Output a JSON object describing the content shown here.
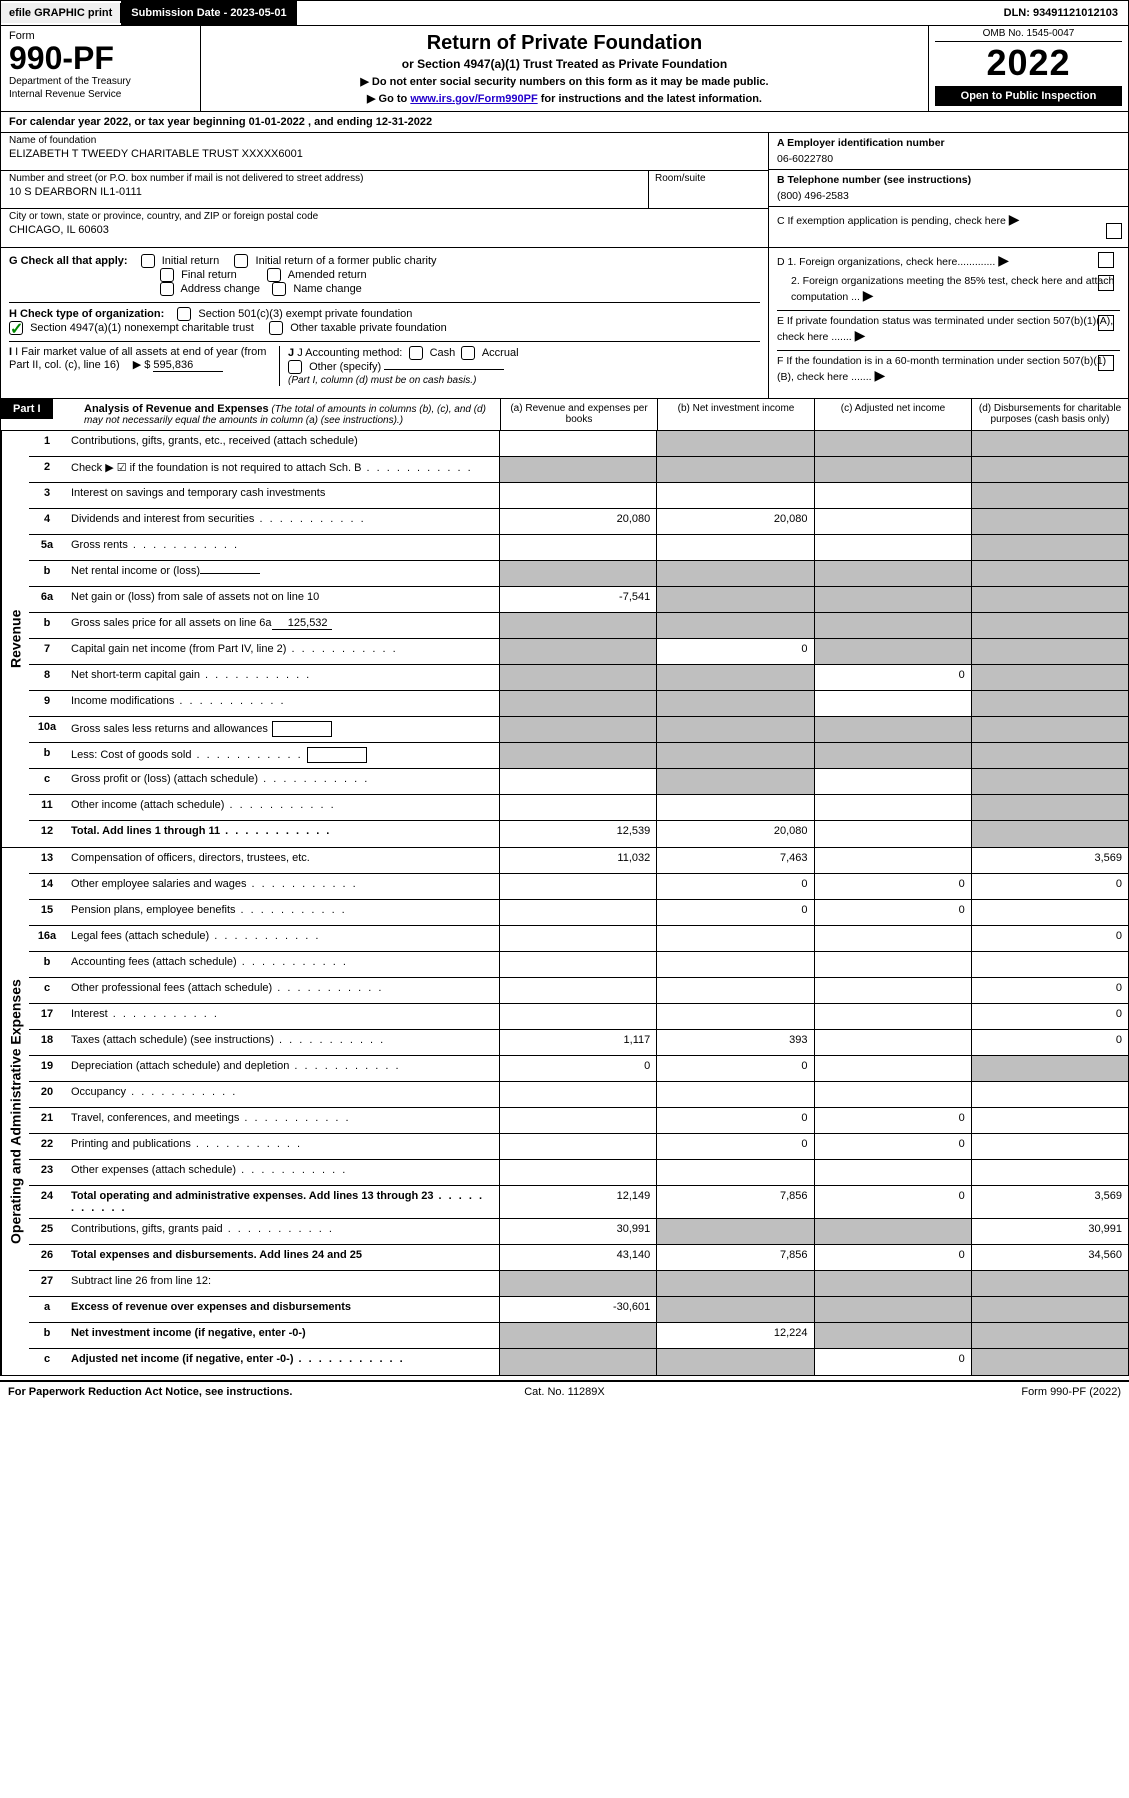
{
  "topbar": {
    "efile_label": "efile GRAPHIC print",
    "submission_date_label": "Submission Date - 2023-05-01",
    "dln": "DLN: 93491121012103"
  },
  "header": {
    "form_label": "Form",
    "form_number": "990-PF",
    "dept1": "Department of the Treasury",
    "dept2": "Internal Revenue Service",
    "title": "Return of Private Foundation",
    "subtitle1": "or Section 4947(a)(1) Trust Treated as Private Foundation",
    "subtitle2": "▶ Do not enter social security numbers on this form as it may be made public.",
    "subtitle3_pre": "▶ Go to ",
    "subtitle3_link": "www.irs.gov/Form990PF",
    "subtitle3_post": " for instructions and the latest information.",
    "omb": "OMB No. 1545-0047",
    "year": "2022",
    "open_public": "Open to Public Inspection"
  },
  "calendar_year": "For calendar year 2022, or tax year beginning 01-01-2022          , and ending 12-31-2022",
  "foundation": {
    "name_label": "Name of foundation",
    "name": "ELIZABETH T TWEEDY CHARITABLE TRUST XXXXX6001",
    "addr_label": "Number and street (or P.O. box number if mail is not delivered to street address)",
    "addr": "10 S DEARBORN IL1-0111",
    "room_label": "Room/suite",
    "city_label": "City or town, state or province, country, and ZIP or foreign postal code",
    "city": "CHICAGO, IL  60603",
    "ein_label": "A Employer identification number",
    "ein": "06-6022780",
    "phone_label": "B Telephone number (see instructions)",
    "phone": "(800) 496-2583",
    "c_label": "C If exemption application is pending, check here",
    "d1_label": "D 1. Foreign organizations, check here.............",
    "d2_label": "2. Foreign organizations meeting the 85% test, check here and attach computation ...",
    "e_label": "E  If private foundation status was terminated under section 507(b)(1)(A), check here .......",
    "f_label": "F  If the foundation is in a 60-month termination under section 507(b)(1)(B), check here ......."
  },
  "checks": {
    "g_label": "G Check all that apply:",
    "g_opts": [
      "Initial return",
      "Initial return of a former public charity",
      "Final return",
      "Amended return",
      "Address change",
      "Name change"
    ],
    "h_label": "H Check type of organization:",
    "h1": "Section 501(c)(3) exempt private foundation",
    "h2": "Section 4947(a)(1) nonexempt charitable trust",
    "h3": "Other taxable private foundation",
    "i_label": "I Fair market value of all assets at end of year (from Part II, col. (c), line 16)",
    "i_amount": "595,836",
    "j_label": "J Accounting method:",
    "j_opts": [
      "Cash",
      "Accrual"
    ],
    "j_other": "Other (specify)",
    "j_note": "(Part I, column (d) must be on cash basis.)"
  },
  "part1": {
    "tag": "Part I",
    "title": "Analysis of Revenue and Expenses",
    "note": "(The total of amounts in columns (b), (c), and (d) may not necessarily equal the amounts in column (a) (see instructions).)",
    "cols": {
      "a": "(a)   Revenue and expenses per books",
      "b": "(b)   Net investment income",
      "c": "(c)   Adjusted net income",
      "d": "(d)   Disbursements for charitable purposes (cash basis only)"
    }
  },
  "sections": {
    "revenue": "Revenue",
    "expenses": "Operating and Administrative Expenses"
  },
  "rows": [
    {
      "num": "1",
      "desc": "Contributions, gifts, grants, etc., received (attach schedule)",
      "a": "",
      "b": null,
      "c": null,
      "d": null,
      "greyb": true,
      "greyc": true,
      "greyd": true
    },
    {
      "num": "2",
      "desc": "Check ▶ ☑ if the foundation is not required to attach Sch. B",
      "a": null,
      "b": null,
      "c": null,
      "d": null,
      "greya": true,
      "greyb": true,
      "greyc": true,
      "greyd": true,
      "dots": true
    },
    {
      "num": "3",
      "desc": "Interest on savings and temporary cash investments",
      "a": "",
      "b": "",
      "c": "",
      "d": null,
      "greyd": true
    },
    {
      "num": "4",
      "desc": "Dividends and interest from securities",
      "a": "20,080",
      "b": "20,080",
      "c": "",
      "d": null,
      "greyd": true,
      "dots": true
    },
    {
      "num": "5a",
      "desc": "Gross rents",
      "a": "",
      "b": "",
      "c": "",
      "d": null,
      "greyd": true,
      "dots": true
    },
    {
      "num": "b",
      "desc": "Net rental income or (loss)",
      "a": null,
      "b": null,
      "c": null,
      "d": null,
      "greya": true,
      "greyb": true,
      "greyc": true,
      "greyd": true,
      "inline_underline": ""
    },
    {
      "num": "6a",
      "desc": "Net gain or (loss) from sale of assets not on line 10",
      "a": "-7,541",
      "b": null,
      "c": null,
      "d": null,
      "greyb": true,
      "greyc": true,
      "greyd": true
    },
    {
      "num": "b",
      "desc": "Gross sales price for all assets on line 6a",
      "a": null,
      "b": null,
      "c": null,
      "d": null,
      "greya": true,
      "greyb": true,
      "greyc": true,
      "greyd": true,
      "inline_underline": "125,532"
    },
    {
      "num": "7",
      "desc": "Capital gain net income (from Part IV, line 2)",
      "a": null,
      "b": "0",
      "c": null,
      "d": null,
      "greya": true,
      "greyc": true,
      "greyd": true,
      "dots": true
    },
    {
      "num": "8",
      "desc": "Net short-term capital gain",
      "a": null,
      "b": null,
      "c": "0",
      "d": null,
      "greya": true,
      "greyb": true,
      "greyd": true,
      "dots": true
    },
    {
      "num": "9",
      "desc": "Income modifications",
      "a": null,
      "b": null,
      "c": "",
      "d": null,
      "greya": true,
      "greyb": true,
      "greyd": true,
      "dots": true
    },
    {
      "num": "10a",
      "desc": "Gross sales less returns and allowances",
      "a": null,
      "b": null,
      "c": null,
      "d": null,
      "greya": true,
      "greyb": true,
      "greyc": true,
      "greyd": true,
      "inline_box": true
    },
    {
      "num": "b",
      "desc": "Less: Cost of goods sold",
      "a": null,
      "b": null,
      "c": null,
      "d": null,
      "greya": true,
      "greyb": true,
      "greyc": true,
      "greyd": true,
      "inline_box": true,
      "dots": true
    },
    {
      "num": "c",
      "desc": "Gross profit or (loss) (attach schedule)",
      "a": "",
      "b": null,
      "c": "",
      "d": null,
      "greyb": true,
      "greyd": true,
      "dots": true
    },
    {
      "num": "11",
      "desc": "Other income (attach schedule)",
      "a": "",
      "b": "",
      "c": "",
      "d": null,
      "greyd": true,
      "dots": true
    },
    {
      "num": "12",
      "desc": "Total. Add lines 1 through 11",
      "a": "12,539",
      "b": "20,080",
      "c": "",
      "d": null,
      "greyd": true,
      "bold": true,
      "dots": true
    }
  ],
  "exp_rows": [
    {
      "num": "13",
      "desc": "Compensation of officers, directors, trustees, etc.",
      "a": "11,032",
      "b": "7,463",
      "c": "",
      "d": "3,569"
    },
    {
      "num": "14",
      "desc": "Other employee salaries and wages",
      "a": "",
      "b": "0",
      "c": "0",
      "d": "0",
      "dots": true
    },
    {
      "num": "15",
      "desc": "Pension plans, employee benefits",
      "a": "",
      "b": "0",
      "c": "0",
      "d": "",
      "dots": true
    },
    {
      "num": "16a",
      "desc": "Legal fees (attach schedule)",
      "a": "",
      "b": "",
      "c": "",
      "d": "0",
      "dots": true
    },
    {
      "num": "b",
      "desc": "Accounting fees (attach schedule)",
      "a": "",
      "b": "",
      "c": "",
      "d": "",
      "dots": true
    },
    {
      "num": "c",
      "desc": "Other professional fees (attach schedule)",
      "a": "",
      "b": "",
      "c": "",
      "d": "0",
      "dots": true
    },
    {
      "num": "17",
      "desc": "Interest",
      "a": "",
      "b": "",
      "c": "",
      "d": "0",
      "dots": true
    },
    {
      "num": "18",
      "desc": "Taxes (attach schedule) (see instructions)",
      "a": "1,117",
      "b": "393",
      "c": "",
      "d": "0",
      "dots": true
    },
    {
      "num": "19",
      "desc": "Depreciation (attach schedule) and depletion",
      "a": "0",
      "b": "0",
      "c": "",
      "d": null,
      "greyd": true,
      "dots": true
    },
    {
      "num": "20",
      "desc": "Occupancy",
      "a": "",
      "b": "",
      "c": "",
      "d": "",
      "dots": true
    },
    {
      "num": "21",
      "desc": "Travel, conferences, and meetings",
      "a": "",
      "b": "0",
      "c": "0",
      "d": "",
      "dots": true
    },
    {
      "num": "22",
      "desc": "Printing and publications",
      "a": "",
      "b": "0",
      "c": "0",
      "d": "",
      "dots": true
    },
    {
      "num": "23",
      "desc": "Other expenses (attach schedule)",
      "a": "",
      "b": "",
      "c": "",
      "d": "",
      "dots": true
    },
    {
      "num": "24",
      "desc": "Total operating and administrative expenses. Add lines 13 through 23",
      "a": "12,149",
      "b": "7,856",
      "c": "0",
      "d": "3,569",
      "bold": true,
      "dots": true
    },
    {
      "num": "25",
      "desc": "Contributions, gifts, grants paid",
      "a": "30,991",
      "b": null,
      "c": null,
      "d": "30,991",
      "greyb": true,
      "greyc": true,
      "dots": true
    },
    {
      "num": "26",
      "desc": "Total expenses and disbursements. Add lines 24 and 25",
      "a": "43,140",
      "b": "7,856",
      "c": "0",
      "d": "34,560",
      "bold": true
    },
    {
      "num": "27",
      "desc": "Subtract line 26 from line 12:",
      "a": null,
      "b": null,
      "c": null,
      "d": null,
      "greya": true,
      "greyb": true,
      "greyc": true,
      "greyd": true
    },
    {
      "num": "a",
      "desc": "Excess of revenue over expenses and disbursements",
      "a": "-30,601",
      "b": null,
      "c": null,
      "d": null,
      "greyb": true,
      "greyc": true,
      "greyd": true,
      "bold": true
    },
    {
      "num": "b",
      "desc": "Net investment income (if negative, enter -0-)",
      "a": null,
      "b": "12,224",
      "c": null,
      "d": null,
      "greya": true,
      "greyc": true,
      "greyd": true,
      "bold": true
    },
    {
      "num": "c",
      "desc": "Adjusted net income (if negative, enter -0-)",
      "a": null,
      "b": null,
      "c": "0",
      "d": null,
      "greya": true,
      "greyb": true,
      "greyd": true,
      "bold": true,
      "dots": true
    }
  ],
  "footer": {
    "left": "For Paperwork Reduction Act Notice, see instructions.",
    "center": "Cat. No. 11289X",
    "right": "Form 990-PF (2022)"
  },
  "colors": {
    "black": "#000000",
    "white": "#ffffff",
    "grey_cell": "#bfbfbf",
    "link": "#2200cc",
    "check_green": "#008800"
  }
}
